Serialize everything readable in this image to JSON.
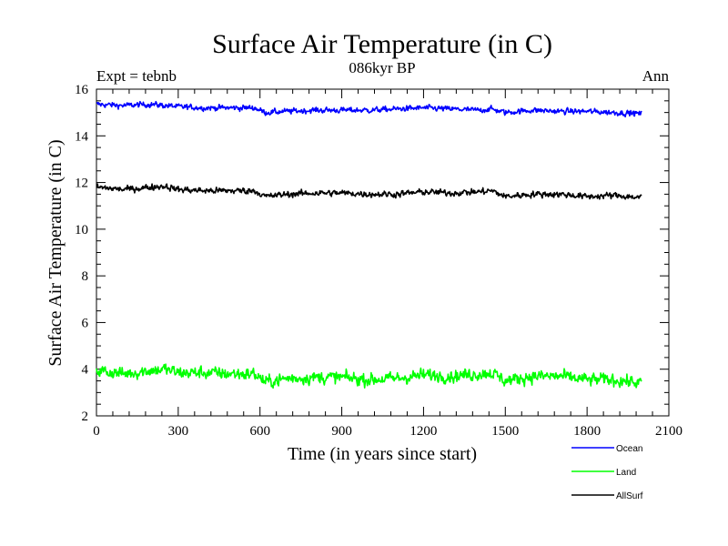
{
  "chart_data": {
    "type": "line",
    "title": "Surface Air Temperature (in C)",
    "subtitle": "086kyr BP",
    "annotation_left": "Expt = tebnb",
    "annotation_right": "Ann",
    "xlabel": "Time (in years since start)",
    "ylabel": "Surface Air Temperature (in C)",
    "xlim": [
      0,
      2100
    ],
    "ylim": [
      2,
      16
    ],
    "xticks": [
      0,
      300,
      600,
      900,
      1200,
      1500,
      1800,
      2100
    ],
    "yticks": [
      2,
      4,
      6,
      8,
      10,
      12,
      14,
      16
    ],
    "xtick_labels": [
      "0",
      "300",
      "600",
      "900",
      "1200",
      "1500",
      "1800",
      "2100"
    ],
    "ytick_labels": [
      "2",
      "4",
      "6",
      "8",
      "10",
      "12",
      "14",
      "16"
    ],
    "x_range": [
      0,
      2000
    ],
    "series": [
      {
        "name": "Ocean",
        "color": "#0000ff",
        "x": [
          0,
          100,
          200,
          300,
          400,
          500,
          580,
          620,
          700,
          800,
          900,
          1000,
          1100,
          1200,
          1300,
          1400,
          1450,
          1500,
          1600,
          1700,
          1800,
          1900,
          2000
        ],
        "values": [
          15.35,
          15.3,
          15.35,
          15.25,
          15.2,
          15.2,
          15.2,
          15.0,
          15.05,
          15.1,
          15.1,
          15.1,
          15.15,
          15.2,
          15.15,
          15.1,
          15.15,
          15.0,
          15.1,
          15.05,
          15.05,
          15.0,
          14.95
        ],
        "noise": 0.08
      },
      {
        "name": "Land",
        "color": "#00ff00",
        "x": [
          0,
          100,
          200,
          250,
          300,
          400,
          500,
          580,
          620,
          700,
          800,
          900,
          1000,
          1100,
          1200,
          1300,
          1400,
          1450,
          1500,
          1600,
          1700,
          1800,
          1900,
          2000
        ],
        "values": [
          3.95,
          3.8,
          3.95,
          4.0,
          3.85,
          3.85,
          3.8,
          3.8,
          3.45,
          3.6,
          3.65,
          3.65,
          3.55,
          3.6,
          3.75,
          3.7,
          3.8,
          3.85,
          3.5,
          3.7,
          3.7,
          3.55,
          3.55,
          3.4
        ],
        "noise": 0.18
      },
      {
        "name": "AllSurf",
        "color": "#000000",
        "x": [
          0,
          100,
          200,
          250,
          300,
          400,
          500,
          580,
          620,
          700,
          800,
          900,
          1000,
          1100,
          1200,
          1300,
          1400,
          1450,
          1500,
          1600,
          1700,
          1800,
          1900,
          2000
        ],
        "values": [
          11.8,
          11.7,
          11.8,
          11.85,
          11.7,
          11.65,
          11.65,
          11.65,
          11.4,
          11.5,
          11.55,
          11.55,
          11.5,
          11.5,
          11.6,
          11.55,
          11.6,
          11.65,
          11.4,
          11.5,
          11.5,
          11.4,
          11.45,
          11.35
        ],
        "noise": 0.09
      }
    ],
    "legend": {
      "placement": "bottom-right",
      "entries": [
        "Ocean",
        "Land",
        "AllSurf"
      ]
    }
  }
}
